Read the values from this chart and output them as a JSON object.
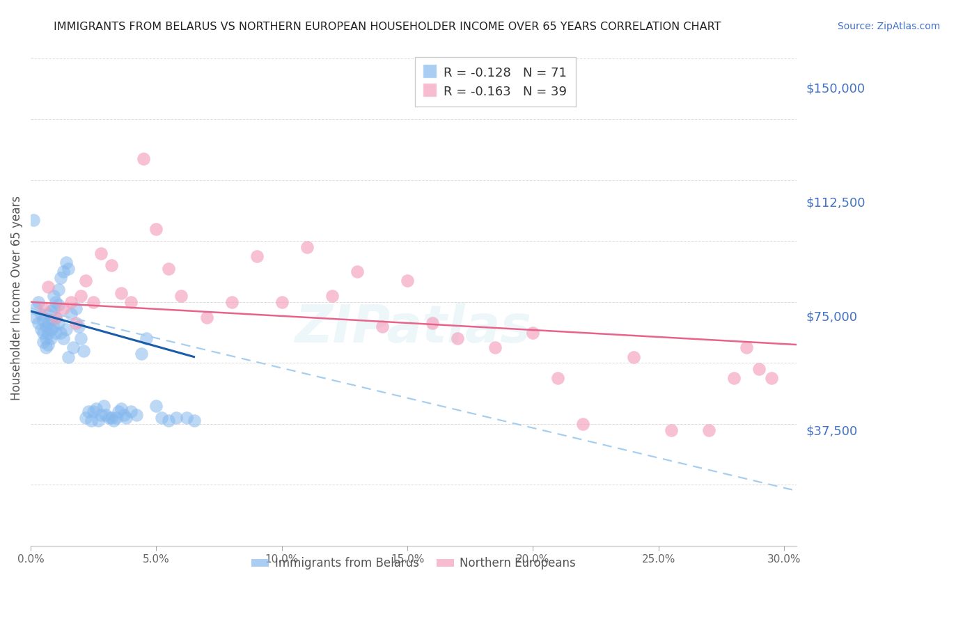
{
  "title": "IMMIGRANTS FROM BELARUS VS NORTHERN EUROPEAN HOUSEHOLDER INCOME OVER 65 YEARS CORRELATION CHART",
  "source": "Source: ZipAtlas.com",
  "ylabel": "Householder Income Over 65 years",
  "ytick_labels": [
    "$150,000",
    "$112,500",
    "$75,000",
    "$37,500"
  ],
  "ytick_values": [
    150000,
    112500,
    75000,
    37500
  ],
  "ylim": [
    0,
    162500
  ],
  "xlim": [
    0.0,
    0.305
  ],
  "legend_entry1": "R = -0.128   N = 71",
  "legend_entry2": "R = -0.163   N = 39",
  "legend_label1": "Immigrants from Belarus",
  "legend_label2": "Northern Europeans",
  "color_blue": "#85B8EE",
  "color_pink": "#F4A0BC",
  "color_line_blue": "#1A5CA8",
  "color_line_pink": "#E8638A",
  "color_dashed": "#A8CEEE",
  "watermark": "ZIPatlas",
  "right_tick_color": "#4472C4",
  "background_color": "#FFFFFF",
  "grid_color": "#CCCCCC",
  "belarus_x": [
    0.001,
    0.002,
    0.002,
    0.003,
    0.003,
    0.004,
    0.004,
    0.005,
    0.005,
    0.005,
    0.006,
    0.006,
    0.006,
    0.007,
    0.007,
    0.007,
    0.007,
    0.008,
    0.008,
    0.008,
    0.008,
    0.009,
    0.009,
    0.009,
    0.01,
    0.01,
    0.01,
    0.011,
    0.011,
    0.011,
    0.012,
    0.012,
    0.013,
    0.013,
    0.014,
    0.014,
    0.015,
    0.015,
    0.016,
    0.017,
    0.018,
    0.019,
    0.02,
    0.021,
    0.022,
    0.023,
    0.024,
    0.025,
    0.026,
    0.027,
    0.028,
    0.029,
    0.03,
    0.031,
    0.032,
    0.033,
    0.034,
    0.035,
    0.036,
    0.037,
    0.038,
    0.04,
    0.042,
    0.044,
    0.046,
    0.05,
    0.052,
    0.055,
    0.058,
    0.062,
    0.065
  ],
  "belarus_y": [
    107000,
    75000,
    78000,
    73000,
    80000,
    71000,
    76000,
    74000,
    70000,
    67000,
    72000,
    68000,
    65000,
    76000,
    73000,
    70000,
    66000,
    77000,
    74000,
    71000,
    68000,
    82000,
    78000,
    72000,
    80000,
    75000,
    70000,
    84000,
    79000,
    73000,
    88000,
    70000,
    90000,
    68000,
    93000,
    71000,
    91000,
    62000,
    76000,
    65000,
    78000,
    72000,
    68000,
    64000,
    42000,
    44000,
    41000,
    44000,
    45000,
    41000,
    43000,
    46000,
    43000,
    42000,
    42000,
    41000,
    42000,
    44000,
    45000,
    43000,
    42000,
    44000,
    43000,
    63000,
    68000,
    46000,
    42000,
    41000,
    42000,
    42000,
    41000
  ],
  "northern_x": [
    0.005,
    0.007,
    0.01,
    0.013,
    0.016,
    0.018,
    0.02,
    0.022,
    0.025,
    0.028,
    0.032,
    0.036,
    0.04,
    0.045,
    0.05,
    0.055,
    0.06,
    0.07,
    0.08,
    0.09,
    0.1,
    0.11,
    0.12,
    0.13,
    0.14,
    0.15,
    0.16,
    0.17,
    0.185,
    0.2,
    0.21,
    0.22,
    0.24,
    0.255,
    0.27,
    0.28,
    0.285,
    0.29,
    0.295
  ],
  "northern_y": [
    78000,
    85000,
    75000,
    78000,
    80000,
    73000,
    82000,
    87000,
    80000,
    96000,
    92000,
    83000,
    80000,
    127000,
    104000,
    91000,
    82000,
    75000,
    80000,
    95000,
    80000,
    98000,
    82000,
    90000,
    72000,
    87000,
    73000,
    68000,
    65000,
    70000,
    55000,
    40000,
    62000,
    38000,
    38000,
    55000,
    65000,
    58000,
    55000
  ],
  "blue_line_x": [
    0.0,
    0.065
  ],
  "blue_line_y": [
    77000,
    62000
  ],
  "pink_line_x": [
    0.0,
    0.305
  ],
  "pink_line_y": [
    80000,
    66000
  ],
  "dashed_line_x": [
    0.0,
    0.305
  ],
  "dashed_line_y": [
    78000,
    18000
  ]
}
